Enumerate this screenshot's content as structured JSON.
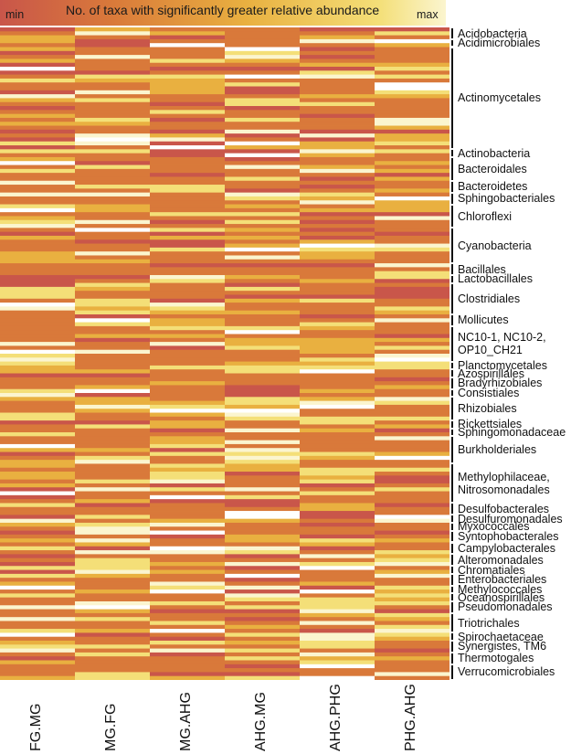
{
  "legend": {
    "title": "No. of taxa with significantly greater relative abundance",
    "min_label": "min",
    "max_label": "max",
    "gradient_colors": [
      "#c9564a",
      "#d9793a",
      "#e9b040",
      "#f4df78",
      "#fbf5cf"
    ]
  },
  "chart_data": {
    "type": "heatmap",
    "title": "No. of taxa with significantly greater relative abundance",
    "columns": [
      "FG.MG",
      "MG.FG",
      "MG.AHG",
      "AHG.MG",
      "AHG.PHG",
      "PHG.AHG"
    ],
    "value_scale": [
      "min",
      "max"
    ],
    "row_groups": [
      {
        "label": "Acidobacteria",
        "rows": 3
      },
      {
        "label": "Acidimicrobiales",
        "rows": 2
      },
      {
        "label": "Actinomycetales",
        "rows": 26
      },
      {
        "label": "Actinobacteria",
        "rows": 2
      },
      {
        "label": "Bacteroidales",
        "rows": 6
      },
      {
        "label": "Bacteroidetes",
        "rows": 3
      },
      {
        "label": "Sphingobacteriales",
        "rows": 3
      },
      {
        "label": "Chloroflexi",
        "rows": 6
      },
      {
        "label": "Cyanobacteria",
        "rows": 9
      },
      {
        "label": "Bacillales",
        "rows": 3
      },
      {
        "label": "Lactobacillales",
        "rows": 2
      },
      {
        "label": "Clostridiales",
        "rows": 8
      },
      {
        "label": "Mollicutes",
        "rows": 3
      },
      {
        "label": "NC10-1, NC10-2,\nOP10_CH21",
        "rows": 9
      },
      {
        "label": "Planctomycetales",
        "rows": 2
      },
      {
        "label": "Azospirillales",
        "rows": 2
      },
      {
        "label": "Bradyrhizobiales",
        "rows": 3
      },
      {
        "label": "Consistiales",
        "rows": 2
      },
      {
        "label": "Rhizobiales",
        "rows": 6
      },
      {
        "label": "Rickettsiales",
        "rows": 2
      },
      {
        "label": "Sphingomonadaceae",
        "rows": 2
      },
      {
        "label": "Burkholderiales",
        "rows": 7
      },
      {
        "label": "Methylophilaceae,\nNitrosomonadales",
        "rows": 10
      },
      {
        "label": "Desulfobacterales",
        "rows": 3
      },
      {
        "label": "Desulfuromonadales",
        "rows": 2
      },
      {
        "label": "Myxococcales",
        "rows": 2
      },
      {
        "label": "Syntophobacterales",
        "rows": 3
      },
      {
        "label": "Campylobacterales",
        "rows": 3
      },
      {
        "label": "Alteromonadales",
        "rows": 3
      },
      {
        "label": "Chromatiales",
        "rows": 2
      },
      {
        "label": "Enterobacteriales",
        "rows": 3
      },
      {
        "label": "Methylococcales",
        "rows": 2
      },
      {
        "label": "Oceanospirillales",
        "rows": 2
      },
      {
        "label": "Pseudomonadales",
        "rows": 3
      },
      {
        "label": "Triotrichales",
        "rows": 5
      },
      {
        "label": "Spirochaetaceae",
        "rows": 2
      },
      {
        "label": "Synergistes, TM6",
        "rows": 3
      },
      {
        "label": "Thermotogales",
        "rows": 3
      },
      {
        "label": "Verrucomicrobiales",
        "rows": 4
      }
    ]
  }
}
